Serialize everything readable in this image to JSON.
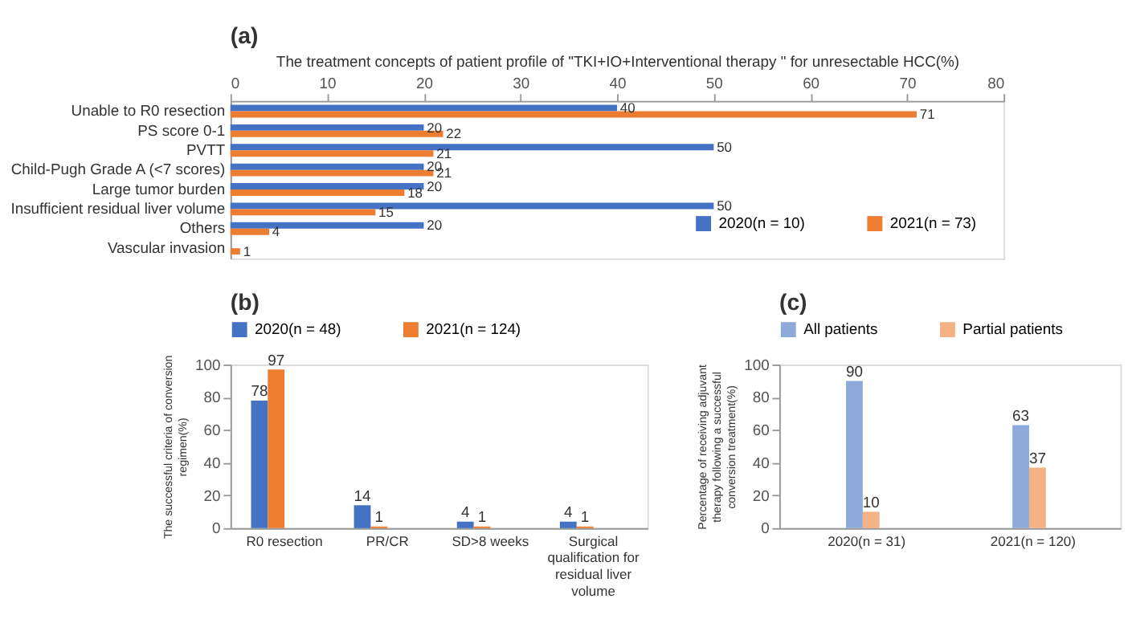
{
  "chart_data": [
    {
      "type": "bar",
      "title": "(a)",
      "orientation": "horizontal",
      "xlabel": "The treatment concepts of patient profile of \"TKI+IO+Interventional therapy \" for unresectable HCC(%)",
      "categories": [
        "Unable to R0 resection",
        "PS score 0-1",
        "PVTT",
        "Child-Pugh Grade A (<7 scores)",
        "Large tumor burden",
        "Insufficient residual liver volume",
        "Others",
        "Vascular invasion"
      ],
      "series": [
        {
          "name": "2020(n = 10)",
          "color": "#4472c4",
          "values": [
            40,
            20,
            50,
            20,
            20,
            50,
            20,
            null
          ]
        },
        {
          "name": "2021(n = 73)",
          "color": "#ed7d31",
          "values": [
            71,
            22,
            21,
            21,
            18,
            15,
            4,
            1
          ]
        }
      ],
      "xlim": [
        0,
        80
      ],
      "xticks": [
        0,
        10,
        20,
        30,
        40,
        50,
        60,
        70,
        80
      ],
      "data_labels": true,
      "legend": "bottom right",
      "grid": false
    },
    {
      "type": "bar",
      "title": "(b)",
      "ylabel": "The successful criteria of conversion regimen(%)",
      "categories": [
        "R0 resection",
        "PR/CR",
        "SD>8 weeks",
        "Surgical qualification for residual liver volume"
      ],
      "series": [
        {
          "name": "2020(n = 48)",
          "color": "#4472c4",
          "values": [
            78,
            14,
            4,
            4
          ]
        },
        {
          "name": "2021(n = 124)",
          "color": "#ed7d31",
          "values": [
            97,
            1,
            1,
            1
          ]
        }
      ],
      "ylim": [
        0,
        100
      ],
      "yticks": [
        0,
        20,
        40,
        60,
        80,
        100
      ],
      "data_labels": true,
      "legend": "top",
      "grid": false
    },
    {
      "type": "bar",
      "title": "(c)",
      "ylabel": "Percentage of receiving adjuvant therapy following a successful conversion treatment(%)",
      "categories": [
        "2020(n = 31)",
        "2021(n = 120)"
      ],
      "series": [
        {
          "name": "All patients",
          "color": "#8eaadb",
          "values": [
            90,
            63
          ]
        },
        {
          "name": "Partial patients",
          "color": "#f4b183",
          "values": [
            10,
            37
          ]
        }
      ],
      "ylim": [
        0,
        100
      ],
      "yticks": [
        0,
        20,
        40,
        60,
        80,
        100
      ],
      "data_labels": true,
      "legend": "top",
      "grid": false
    }
  ]
}
